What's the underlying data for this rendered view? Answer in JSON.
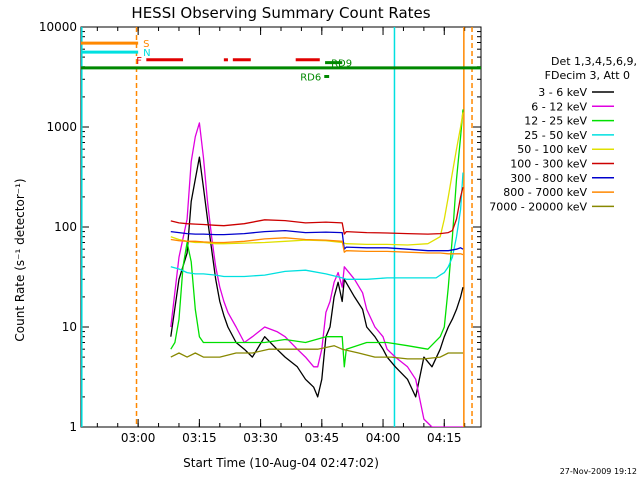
{
  "chart_data": {
    "type": "line",
    "title": "HESSI Observing Summary Count Rates",
    "xlabel": "Start Time (10-Aug-04 02:47:02)",
    "ylabel": "Count Rate (s⁻¹ detector⁻¹)",
    "x_unit": "minutes after 02:47:02",
    "xlim": [
      0,
      98
    ],
    "ylim": [
      1,
      10000
    ],
    "y_scale": "log",
    "x_ticks": [
      {
        "x": 14,
        "label": "03:00"
      },
      {
        "x": 29,
        "label": "03:15"
      },
      {
        "x": 44,
        "label": "03:30"
      },
      {
        "x": 59,
        "label": "03:45"
      },
      {
        "x": 74,
        "label": "04:00"
      },
      {
        "x": 89,
        "label": "04:15"
      }
    ],
    "y_ticks": [
      {
        "y": 1,
        "label": "1"
      },
      {
        "y": 10,
        "label": "10"
      },
      {
        "y": 100,
        "label": "100"
      },
      {
        "y": 1000,
        "label": "1000"
      },
      {
        "y": 10000,
        "label": "10000"
      }
    ],
    "legend": {
      "header": [
        "Det 1,3,4,5,6,9,",
        "FDecim 3, Att 0"
      ],
      "placement": "right",
      "entries": [
        {
          "label": "3 - 6 keV",
          "color": "#000000"
        },
        {
          "label": "6 - 12 keV",
          "color": "#e000e0"
        },
        {
          "label": "12 - 25 keV",
          "color": "#00e000"
        },
        {
          "label": "25 - 50 keV",
          "color": "#00e0e0"
        },
        {
          "label": "50 - 100 keV",
          "color": "#e0e000"
        },
        {
          "label": "100 - 300 keV",
          "color": "#cc0000"
        },
        {
          "label": "300 - 800 keV",
          "color": "#0000cc"
        },
        {
          "label": "800 - 7000 keV",
          "color": "#ff8800"
        },
        {
          "label": "7000 - 20000 keV",
          "color": "#888800"
        }
      ]
    },
    "series": [
      {
        "name": "3 - 6 keV",
        "color": "#000000",
        "x": [
          22,
          24,
          26,
          27,
          28,
          29,
          30,
          31,
          32,
          33,
          34,
          35,
          36,
          38,
          40,
          42,
          45,
          48,
          50,
          53,
          55,
          57,
          58,
          59,
          60,
          61,
          62,
          63,
          64,
          64.5,
          67,
          69,
          70,
          72,
          74,
          75,
          77,
          80,
          82,
          84,
          86,
          88,
          89,
          90,
          91,
          92,
          93,
          93.6
        ],
        "y": [
          8,
          30,
          55,
          180,
          300,
          500,
          250,
          120,
          60,
          30,
          18,
          13,
          10,
          7,
          6,
          5,
          8,
          6,
          5,
          4,
          3,
          2.5,
          2,
          3,
          8,
          10,
          20,
          28,
          18,
          30,
          20,
          15,
          10,
          8,
          6,
          5,
          4,
          3,
          2,
          5,
          4,
          6,
          8,
          10,
          12,
          15,
          20,
          25
        ]
      },
      {
        "name": "6 - 12 keV",
        "color": "#e000e0",
        "x": [
          22,
          24,
          26,
          27,
          28,
          29,
          30,
          31,
          32,
          33,
          34,
          35,
          36,
          38,
          40,
          42,
          45,
          48,
          50,
          53,
          55,
          57,
          58,
          59,
          60,
          61,
          62,
          63,
          64,
          64.5,
          67,
          69,
          70,
          72,
          74,
          75,
          77,
          80,
          82,
          84,
          86,
          88,
          89,
          90,
          91,
          92,
          93,
          93.6
        ],
        "y": [
          10,
          50,
          120,
          450,
          800,
          1100,
          500,
          180,
          80,
          40,
          25,
          18,
          14,
          10,
          7,
          8,
          10,
          9,
          8,
          6,
          5,
          4,
          4,
          6,
          14,
          18,
          28,
          35,
          25,
          40,
          30,
          22,
          15,
          10,
          8,
          6,
          5,
          4,
          3,
          1.2,
          1,
          1,
          1,
          1,
          1,
          1,
          1,
          1
        ]
      },
      {
        "name": "12 - 25 keV",
        "color": "#00e000",
        "x": [
          22,
          23,
          24,
          25,
          26,
          27,
          28,
          29,
          30,
          32,
          34,
          38,
          45,
          50,
          55,
          60,
          64,
          64.5,
          65,
          70,
          75,
          80,
          85,
          88,
          89,
          90,
          91,
          92,
          93,
          93.6
        ],
        "y": [
          6,
          7,
          12,
          40,
          70,
          45,
          15,
          8,
          7,
          7,
          7,
          7,
          7,
          7.5,
          7,
          8,
          8,
          4,
          6,
          7,
          7,
          6.5,
          6,
          8,
          10,
          25,
          80,
          300,
          800,
          1500
        ]
      },
      {
        "name": "25 - 50 keV",
        "color": "#00e0e0",
        "x": [
          22,
          24,
          26,
          28,
          30,
          33,
          35,
          40,
          45,
          50,
          55,
          60,
          64,
          65,
          70,
          75,
          80,
          85,
          87,
          88,
          89,
          90,
          91,
          92,
          93,
          93.6
        ],
        "y": [
          40,
          38,
          35,
          34,
          34,
          33,
          32,
          32,
          33,
          36,
          37,
          34,
          31,
          30,
          30,
          31,
          31,
          31,
          31,
          33,
          35,
          40,
          50,
          80,
          150,
          350
        ]
      },
      {
        "name": "50 - 100 keV",
        "color": "#e0e000",
        "x": [
          22,
          24,
          26,
          28,
          30,
          33,
          35,
          40,
          45,
          50,
          55,
          60,
          64,
          65,
          70,
          75,
          80,
          85,
          88,
          89,
          90,
          91,
          92,
          93,
          93.6
        ],
        "y": [
          80,
          75,
          72,
          70,
          70,
          68,
          68,
          69,
          70,
          72,
          74,
          73,
          70,
          68,
          67,
          67,
          66,
          68,
          80,
          120,
          200,
          350,
          600,
          1000,
          1400
        ]
      },
      {
        "name": "100 - 300 keV",
        "color": "#cc0000",
        "x": [
          22,
          24,
          26,
          28,
          30,
          33,
          35,
          40,
          45,
          50,
          55,
          60,
          64,
          64.5,
          65,
          70,
          75,
          80,
          85,
          88,
          90,
          91,
          92,
          93,
          93.6
        ],
        "y": [
          115,
          110,
          108,
          107,
          106,
          104,
          103,
          108,
          118,
          116,
          110,
          112,
          110,
          85,
          90,
          88,
          87,
          86,
          85,
          86,
          88,
          92,
          120,
          200,
          250
        ]
      },
      {
        "name": "300 - 800 keV",
        "color": "#0000cc",
        "x": [
          22,
          24,
          26,
          28,
          30,
          33,
          35,
          40,
          45,
          50,
          55,
          60,
          64,
          64.5,
          65,
          70,
          75,
          80,
          85,
          88,
          90,
          92,
          93,
          93.6
        ],
        "y": [
          90,
          88,
          86,
          85,
          85,
          84,
          84,
          86,
          90,
          92,
          88,
          89,
          88,
          60,
          63,
          62,
          62,
          60,
          58,
          58,
          58,
          60,
          62,
          60
        ]
      },
      {
        "name": "800 - 7000 keV",
        "color": "#ff8800",
        "x": [
          22,
          24,
          26,
          28,
          30,
          33,
          35,
          40,
          45,
          50,
          55,
          60,
          64,
          64.5,
          65,
          70,
          75,
          80,
          85,
          88,
          90,
          92,
          93,
          93.6
        ],
        "y": [
          75,
          73,
          72,
          72,
          71,
          70,
          70,
          72,
          76,
          78,
          75,
          74,
          72,
          56,
          58,
          57,
          57,
          56,
          55,
          55,
          54,
          54,
          54,
          53
        ]
      },
      {
        "name": "7000 - 20000 keV",
        "color": "#888800",
        "x": [
          22,
          24,
          26,
          28,
          30,
          34,
          38,
          42,
          46,
          50,
          54,
          58,
          62,
          64,
          68,
          72,
          76,
          80,
          84,
          88,
          90,
          92,
          93,
          93.6
        ],
        "y": [
          5,
          5.5,
          5,
          5.5,
          5,
          5,
          5.5,
          5.5,
          6,
          6,
          6,
          6,
          6.5,
          6,
          5.5,
          5,
          5,
          4.8,
          4.8,
          5,
          5.5,
          5.5,
          5.5,
          5.5
        ]
      }
    ],
    "flag_bars": [
      {
        "label": "S",
        "color": "#ff8800",
        "y": 6900,
        "segments": [
          [
            0,
            14
          ]
        ]
      },
      {
        "label": "N",
        "color": "#00e0e0",
        "y": 5600,
        "segments": [
          [
            0,
            14
          ]
        ]
      },
      {
        "label": "F",
        "color": "#e00000",
        "y": 4700,
        "segments": [
          [
            16,
            25
          ],
          [
            35,
            36
          ],
          [
            37.2,
            41.6
          ],
          [
            52.6,
            58.5
          ]
        ]
      },
      {
        "label": "RD6",
        "color": "#008800",
        "y": 3200,
        "segments": [
          [
            59.6,
            60.8
          ]
        ]
      },
      {
        "label": "RD9",
        "color": "#008800",
        "y": 4400,
        "segments": [
          [
            59.8,
            64
          ]
        ]
      }
    ],
    "orbit_line": {
      "color": "#008800",
      "y": 3900,
      "x_range": [
        0,
        98
      ]
    },
    "vertical_markers": [
      {
        "x": 0.2,
        "color": "#00e0e0",
        "style": "solid"
      },
      {
        "x": 13.6,
        "color": "#ff8800",
        "style": "dashed"
      },
      {
        "x": 76.8,
        "color": "#00e0e0",
        "style": "solid"
      },
      {
        "x": 93.8,
        "color": "#ff8800",
        "style": "solid"
      },
      {
        "x": 95.8,
        "color": "#ff8800",
        "style": "dashed"
      }
    ]
  },
  "footer": {
    "timestamp": "27-Nov-2009 19:12"
  }
}
